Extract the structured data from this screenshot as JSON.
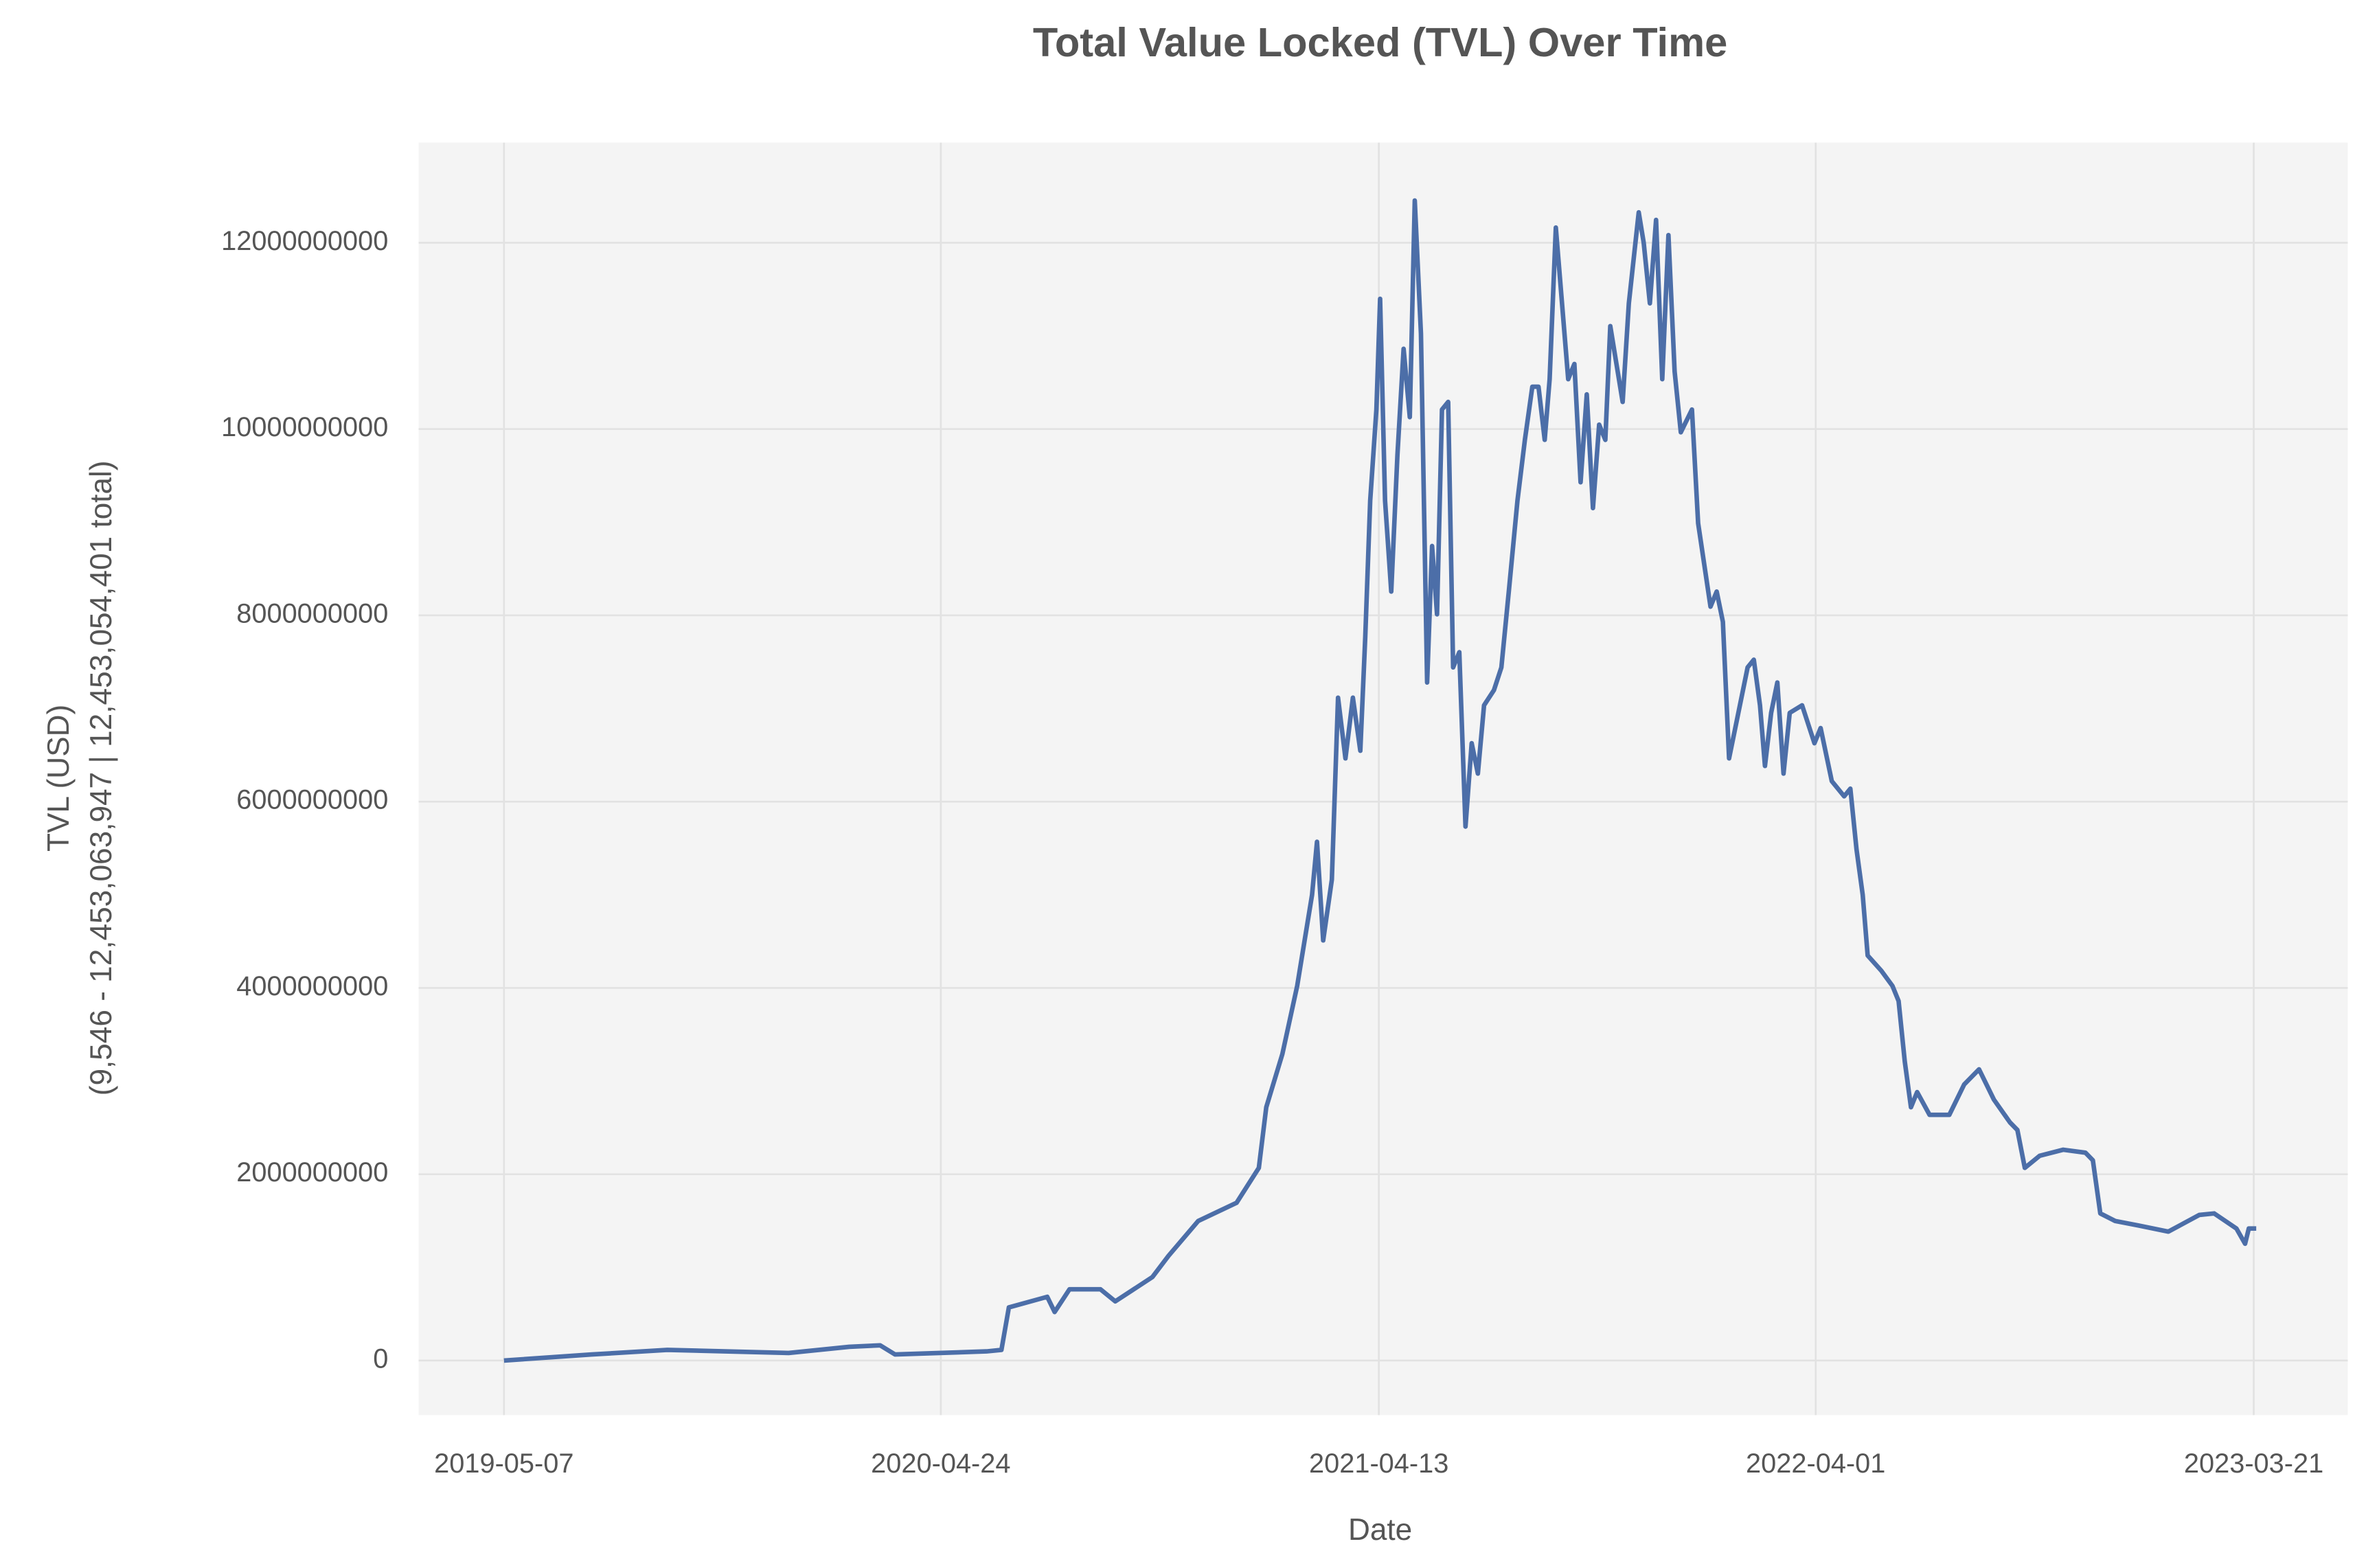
{
  "chart_data": {
    "type": "line",
    "title": "Total Value Locked (TVL) Over Time",
    "x_label": "Date",
    "y_label": [
      "TVL (USD)",
      "(9,546 - 12,453,063,947 | 12,453,054,401 total)"
    ],
    "grid": true,
    "xlim": [
      "2019-02-27",
      "2023-06-05"
    ],
    "xticks": [
      "2019-05-07",
      "2020-04-24",
      "2021-04-13",
      "2022-04-01",
      "2023-03-21"
    ],
    "ylim": [
      -586000000,
      13075000000
    ],
    "yticks": [
      0,
      2000000000,
      4000000000,
      6000000000,
      8000000000,
      10000000000,
      12000000000
    ],
    "x": [
      "2019-05-07",
      "2019-07-17",
      "2019-09-16",
      "2019-12-23",
      "2020-02-10",
      "2020-03-06",
      "2020-03-18",
      "2020-05-31",
      "2020-06-12",
      "2020-06-18",
      "2020-07-19",
      "2020-07-25",
      "2020-08-06",
      "2020-08-31",
      "2020-09-12",
      "2020-10-12",
      "2020-10-25",
      "2020-11-18",
      "2020-12-19",
      "2021-01-06",
      "2021-01-12",
      "2021-01-25",
      "2021-02-06",
      "2021-02-18",
      "2021-02-22",
      "2021-02-27",
      "2021-03-06",
      "2021-03-11",
      "2021-03-17",
      "2021-03-23",
      "2021-03-29",
      "2021-04-02",
      "2021-04-06",
      "2021-04-11",
      "2021-04-14",
      "2021-04-18",
      "2021-04-23",
      "2021-04-28",
      "2021-05-03",
      "2021-05-08",
      "2021-05-12",
      "2021-05-17",
      "2021-05-22",
      "2021-05-26",
      "2021-05-30",
      "2021-06-03",
      "2021-06-08",
      "2021-06-12",
      "2021-06-17",
      "2021-06-22",
      "2021-06-27",
      "2021-07-02",
      "2021-07-07",
      "2021-07-15",
      "2021-07-21",
      "2021-07-27",
      "2021-08-03",
      "2021-08-09",
      "2021-08-15",
      "2021-08-20",
      "2021-08-25",
      "2021-08-29",
      "2021-09-03",
      "2021-09-08",
      "2021-09-13",
      "2021-09-18",
      "2021-09-23",
      "2021-09-28",
      "2021-10-03",
      "2021-10-08",
      "2021-10-13",
      "2021-10-17",
      "2021-10-22",
      "2021-10-27",
      "2021-11-01",
      "2021-11-09",
      "2021-11-13",
      "2021-11-18",
      "2021-11-23",
      "2021-11-28",
      "2021-12-03",
      "2021-12-08",
      "2021-12-13",
      "2021-12-22",
      "2021-12-27",
      "2022-01-06",
      "2022-01-11",
      "2022-01-16",
      "2022-01-21",
      "2022-01-26",
      "2022-02-05",
      "2022-02-10",
      "2022-02-15",
      "2022-02-19",
      "2022-02-24",
      "2022-03-01",
      "2022-03-06",
      "2022-03-11",
      "2022-03-21",
      "2022-03-31",
      "2022-04-05",
      "2022-04-14",
      "2022-04-24",
      "2022-04-29",
      "2022-05-04",
      "2022-05-09",
      "2022-05-13",
      "2022-05-24",
      "2022-06-02",
      "2022-06-07",
      "2022-06-12",
      "2022-06-17",
      "2022-06-22",
      "2022-07-02",
      "2022-07-18",
      "2022-07-30",
      "2022-08-11",
      "2022-08-23",
      "2022-09-05",
      "2022-09-11",
      "2022-09-17",
      "2022-09-29",
      "2022-10-18",
      "2022-11-05",
      "2022-11-11",
      "2022-11-17",
      "2022-11-29",
      "2022-12-18",
      "2023-01-11",
      "2023-02-05",
      "2023-02-17",
      "2023-03-07",
      "2023-03-14",
      "2023-03-17",
      "2023-03-23"
    ],
    "series": [
      {
        "name": "TVL",
        "color": "#4c6ea8",
        "values": [
          9546,
          65000000,
          114000000,
          81000000,
          147000000,
          163000000,
          65000000,
          98000000,
          114000000,
          570000000,
          684000000,
          521000000,
          765000000,
          765000000,
          635000000,
          896000000,
          1124000000,
          1498000000,
          1693000000,
          2068000000,
          2719000000,
          3289000000,
          4022000000,
          4999000000,
          5569000000,
          4510000000,
          5162000000,
          7116000000,
          6464000000,
          7116000000,
          6546000000,
          7767000000,
          9232000000,
          10209000000,
          11398000000,
          9232000000,
          8255000000,
          9721000000,
          10861000000,
          10128000000,
          12453063947,
          11024000000,
          7279000000,
          8744000000,
          8011000000,
          10209000000,
          10291000000,
          7441000000,
          7604000000,
          5732000000,
          6627000000,
          6301000000,
          7034000000,
          7197000000,
          7441000000,
          8255000000,
          9232000000,
          9884000000,
          10454000000,
          10454000000,
          9884000000,
          10535000000,
          12163000000,
          11349000000,
          10535000000,
          10698000000,
          9428000000,
          10372000000,
          9151000000,
          10047000000,
          9884000000,
          11105000000,
          10698000000,
          10291000000,
          11349000000,
          12326000000,
          12001000000,
          11349000000,
          12245000000,
          10535000000,
          12082000000,
          10617000000,
          9965000000,
          10209000000,
          8988000000,
          8093000000,
          8255000000,
          7930000000,
          6464000000,
          6790000000,
          7441000000,
          7523000000,
          7034000000,
          6383000000,
          6953000000,
          7279000000,
          6301000000,
          6953000000,
          7034000000,
          6627000000,
          6790000000,
          6220000000,
          6057000000,
          6139000000,
          5487000000,
          4999000000,
          4348000000,
          4185000000,
          4022000000,
          3859000000,
          3208000000,
          2719000000,
          2882000000,
          2638000000,
          2638000000,
          2964000000,
          3126000000,
          2801000000,
          2556000000,
          2475000000,
          2068000000,
          2198000000,
          2263000000,
          2231000000,
          2149000000,
          1579000000,
          1498000000,
          1449000000,
          1384000000,
          1563000000,
          1579000000,
          1417000000,
          1254000000,
          1417000000,
          1417000000
        ]
      }
    ]
  }
}
